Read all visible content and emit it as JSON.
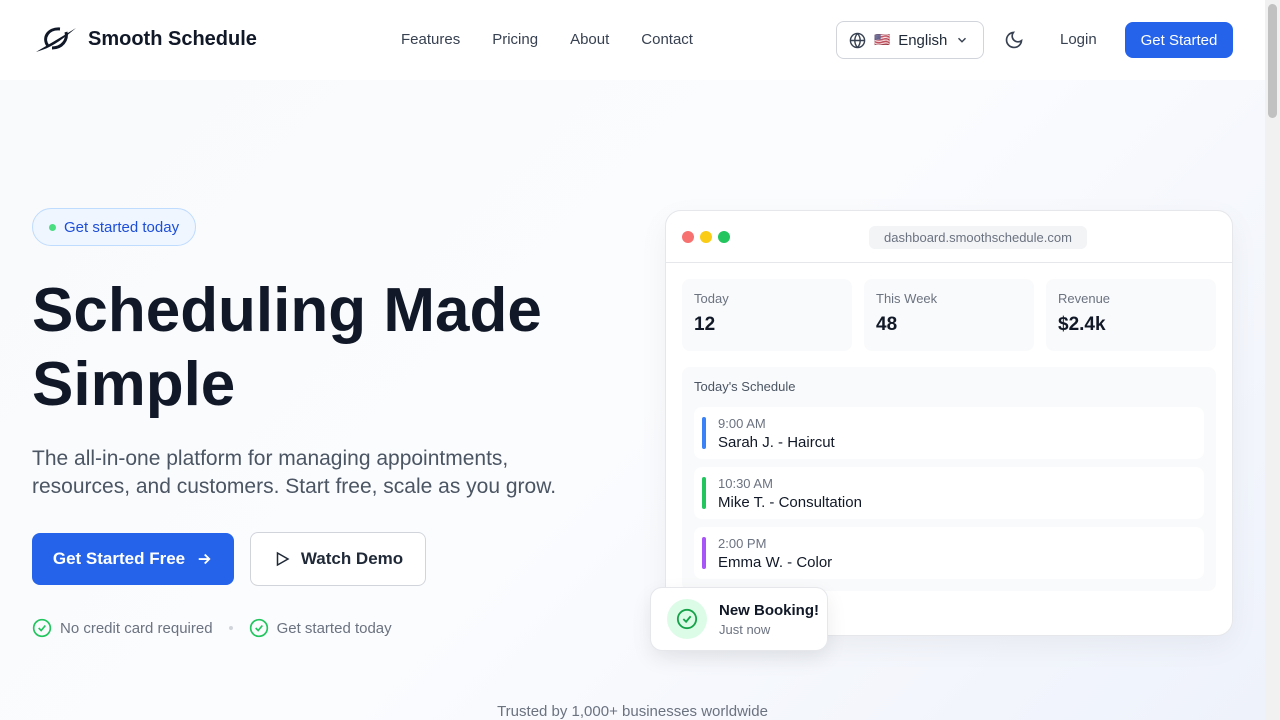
{
  "brand": {
    "name": "Smooth Schedule"
  },
  "nav": {
    "links": [
      "Features",
      "Pricing",
      "About",
      "Contact"
    ],
    "language": "English",
    "flag": "🇺🇸",
    "login": "Login",
    "get_started": "Get Started"
  },
  "hero": {
    "badge": "Get started today",
    "title_line1": "Scheduling Made",
    "title_line2": "Simple",
    "subtitle": "The all-in-one platform for managing appointments, resources, and customers. Start free, scale as you grow.",
    "primary_cta": "Get Started Free",
    "secondary_cta": "Watch Demo",
    "checks": [
      "No credit card required",
      "Get started today"
    ]
  },
  "dashboard": {
    "url": "dashboard.smoothschedule.com",
    "stats": [
      {
        "label": "Today",
        "value": "12"
      },
      {
        "label": "This Week",
        "value": "48"
      },
      {
        "label": "Revenue",
        "value": "$2.4k"
      }
    ],
    "schedule_title": "Today's Schedule",
    "items": [
      {
        "time": "9:00 AM",
        "name": "Sarah J. - Haircut",
        "color": "#3b82f6"
      },
      {
        "time": "10:30 AM",
        "name": "Mike T. - Consultation",
        "color": "#22c55e"
      },
      {
        "time": "2:00 PM",
        "name": "Emma W. - Color",
        "color": "#a855f7"
      }
    ]
  },
  "toast": {
    "title": "New Booking!",
    "subtitle": "Just now"
  },
  "trust": "Trusted by 1,000+ businesses worldwide",
  "colors": {
    "accent": "#2563eb",
    "success": "#22c55e"
  }
}
